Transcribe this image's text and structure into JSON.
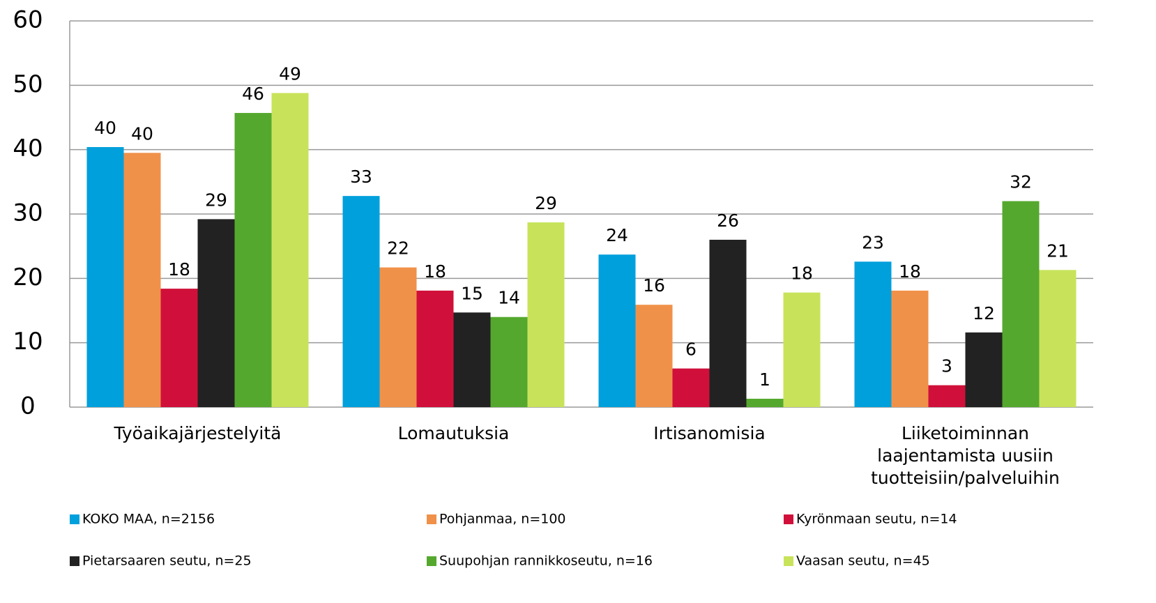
{
  "chart_data": {
    "type": "bar",
    "categories": [
      "Työaikajärjestelyitä",
      "Lomautuksia",
      "Irtisanomisia",
      "Liiketoiminnan laajentamista uusiin tuotteisiin/palveluihin"
    ],
    "series": [
      {
        "name": "KOKO MAA, n=2156",
        "color": "#00a0dc",
        "values": [
          40.4,
          32.8,
          23.7,
          22.6
        ],
        "value_labels": [
          "40",
          "33",
          "24",
          "23"
        ]
      },
      {
        "name": "Pohjanmaa, n=100",
        "color": "#f0914a",
        "values": [
          39.5,
          21.7,
          15.9,
          18.1
        ],
        "value_labels": [
          "40",
          "22",
          "16",
          "18"
        ]
      },
      {
        "name": "Kyrönmaan seutu, n=14",
        "color": "#d0103a",
        "values": [
          18.4,
          18.1,
          6.0,
          3.4
        ],
        "value_labels": [
          "18",
          "18",
          "6",
          "3"
        ]
      },
      {
        "name": "Pietarsaaren seutu, n=25",
        "color": "#222222",
        "values": [
          29.2,
          14.7,
          26.0,
          11.6
        ],
        "value_labels": [
          "29",
          "15",
          "26",
          "12"
        ]
      },
      {
        "name": "Suupohjan rannikkoseutu, n=16",
        "color": "#55a82e",
        "values": [
          45.7,
          14.0,
          1.3,
          32.0
        ],
        "value_labels": [
          "46",
          "14",
          "1",
          "32"
        ]
      },
      {
        "name": "Vaasan seutu, n=45",
        "color": "#c8e35a",
        "values": [
          48.8,
          28.7,
          17.8,
          21.3
        ],
        "value_labels": [
          "49",
          "29",
          "18",
          "21"
        ]
      }
    ],
    "ylim": [
      0,
      60
    ],
    "yticks": [
      0,
      10,
      20,
      30,
      40,
      50,
      60
    ],
    "grid": true
  }
}
